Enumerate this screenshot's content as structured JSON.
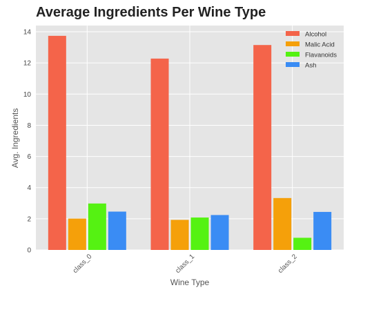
{
  "chart_data": {
    "type": "bar",
    "title": "Average Ingredients Per Wine Type",
    "xlabel": "Wine Type",
    "ylabel": "Avg. Ingredients",
    "categories": [
      "class_0",
      "class_1",
      "class_2"
    ],
    "series": [
      {
        "name": "Alcohol",
        "color": "#f4644a",
        "values": [
          13.74,
          12.28,
          13.15
        ]
      },
      {
        "name": "Malic Acid",
        "color": "#f5a00a",
        "values": [
          2.01,
          1.93,
          3.33
        ]
      },
      {
        "name": "Flavanoids",
        "color": "#55f212",
        "values": [
          2.98,
          2.08,
          0.78
        ]
      },
      {
        "name": "Ash",
        "color": "#3a8cf4",
        "values": [
          2.46,
          2.24,
          2.44
        ]
      }
    ],
    "yticks": [
      "0",
      "2",
      "4",
      "6",
      "8",
      "10",
      "12",
      "14"
    ],
    "ylim": [
      0,
      14.4
    ],
    "grid": true,
    "legend_position": "top-right",
    "plot_background": "#e5e5e5"
  }
}
